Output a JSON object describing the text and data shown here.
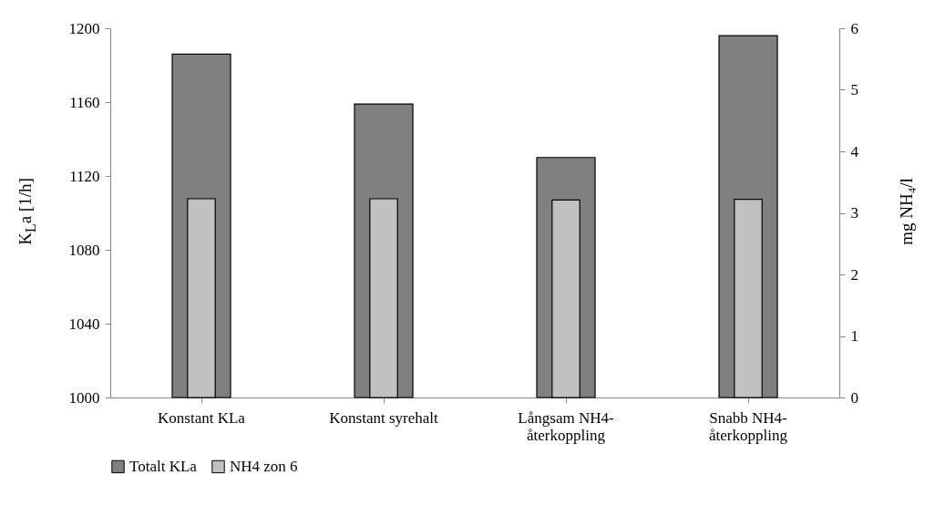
{
  "chart_data": {
    "type": "bar",
    "categories": [
      "Konstant KLa",
      "Konstant syrehalt",
      "Långsam NH4-återkoppling",
      "Snabb NH4-återkoppling"
    ],
    "series": [
      {
        "name": "Totalt KLa",
        "color": "#808080",
        "values": [
          1186,
          1159,
          1130,
          1196
        ]
      },
      {
        "name": "NH4 zon 6",
        "color": "#c0c0c0",
        "axis": "y2",
        "values": [
          3.23,
          3.23,
          3.21,
          3.22
        ]
      }
    ],
    "ylabel": "K$_{L}$a [1/h]",
    "y2label": "mg NH₄/l",
    "ylim": [
      1000,
      1200
    ],
    "yticks": [
      1000,
      1040,
      1080,
      1120,
      1160,
      1200
    ],
    "y2lim": [
      0,
      6
    ],
    "y2ticks": [
      0,
      1,
      2,
      3,
      4,
      5,
      6
    ],
    "grid": false,
    "legend": "bottom"
  }
}
